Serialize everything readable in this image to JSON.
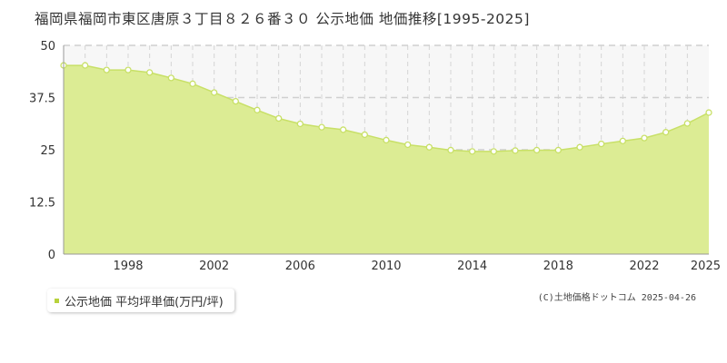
{
  "chart_data": {
    "type": "area",
    "title": "福岡県福岡市東区唐原３丁目８２６番３０ 公示地価 地価推移[1995-2025]",
    "ylim": [
      0,
      50
    ],
    "yticks": [
      "0",
      "12.5",
      "25",
      "37.5",
      "50"
    ],
    "ytick_values": [
      0,
      12.5,
      25,
      37.5,
      50
    ],
    "xlim": [
      1995,
      2025
    ],
    "xticks": [
      "1998",
      "2002",
      "2006",
      "2010",
      "2014",
      "2018",
      "2022",
      "2025"
    ],
    "xtick_values": [
      1998,
      2002,
      2006,
      2010,
      2014,
      2018,
      2022,
      2025
    ],
    "grid": true,
    "series": [
      {
        "name": "公示地価 平均坪単価(万円/坪)",
        "color": "#c8e067",
        "fill": "#dcec94",
        "x": [
          1995,
          1996,
          1997,
          1998,
          1999,
          2000,
          2001,
          2002,
          2003,
          2004,
          2005,
          2006,
          2007,
          2008,
          2009,
          2010,
          2011,
          2012,
          2013,
          2014,
          2015,
          2016,
          2017,
          2018,
          2019,
          2020,
          2021,
          2022,
          2023,
          2024,
          2025
        ],
        "y": [
          45.2,
          45.2,
          44.1,
          44.1,
          43.5,
          42.2,
          40.8,
          38.7,
          36.6,
          34.5,
          32.5,
          31.2,
          30.4,
          29.8,
          28.6,
          27.3,
          26.2,
          25.6,
          24.9,
          24.6,
          24.6,
          24.8,
          24.9,
          24.9,
          25.6,
          26.4,
          27.1,
          27.8,
          29.2,
          31.3,
          33.9
        ]
      }
    ]
  },
  "legend": {
    "label": "公示地価 平均坪単価(万円/坪)",
    "color": "#b8d23c"
  },
  "copyright": "(C)土地価格ドットコム 2025-04-26"
}
